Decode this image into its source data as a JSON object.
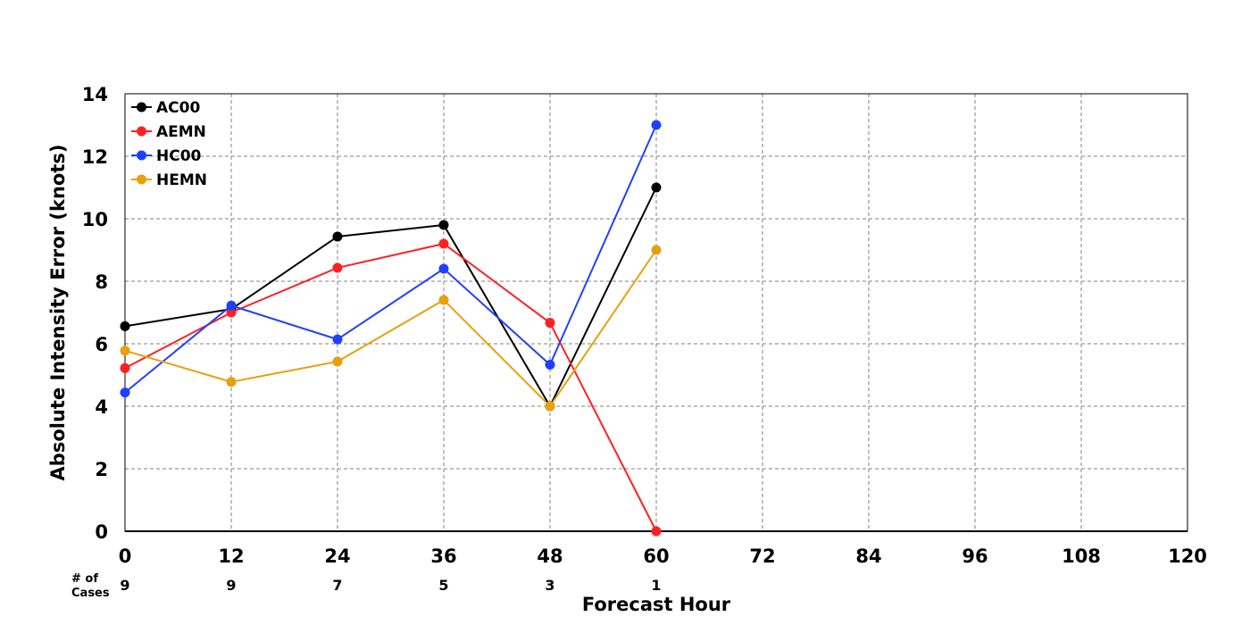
{
  "chart_data": {
    "type": "line",
    "xlabel": "Forecast Hour",
    "ylabel": "Absolute Intensity Error (knots)",
    "xlim": [
      0,
      120
    ],
    "ylim": [
      0,
      14
    ],
    "x_ticks": [
      "0",
      "12",
      "24",
      "36",
      "48",
      "60",
      "72",
      "84",
      "96",
      "108",
      "120"
    ],
    "y_ticks": [
      "0",
      "2",
      "4",
      "6",
      "8",
      "10",
      "12",
      "14"
    ],
    "grid": true,
    "legend_position": "top-left",
    "cases_label_line1": "# of",
    "cases_label_line2": "Cases",
    "cases": [
      {
        "x": 0,
        "n": "9"
      },
      {
        "x": 12,
        "n": "9"
      },
      {
        "x": 24,
        "n": "7"
      },
      {
        "x": 36,
        "n": "5"
      },
      {
        "x": 48,
        "n": "3"
      },
      {
        "x": 60,
        "n": "1"
      }
    ],
    "series": [
      {
        "name": "AC00",
        "color": "#000000",
        "x": [
          0,
          12,
          24,
          36,
          48,
          60
        ],
        "values": [
          6.56,
          7.11,
          9.43,
          9.8,
          4.0,
          11.0
        ]
      },
      {
        "name": "AEMN",
        "color": "#ff2020",
        "x": [
          0,
          12,
          24,
          36,
          48,
          60
        ],
        "values": [
          5.22,
          7.0,
          8.43,
          9.2,
          6.67,
          0.0
        ]
      },
      {
        "name": "HC00",
        "color": "#2040ff",
        "x": [
          0,
          12,
          24,
          36,
          48,
          60
        ],
        "values": [
          4.44,
          7.22,
          6.14,
          8.4,
          5.33,
          13.0
        ]
      },
      {
        "name": "HEMN",
        "color": "#e6a010",
        "x": [
          0,
          12,
          24,
          36,
          48,
          60
        ],
        "values": [
          5.78,
          4.78,
          5.43,
          7.4,
          4.0,
          9.0
        ]
      }
    ]
  }
}
